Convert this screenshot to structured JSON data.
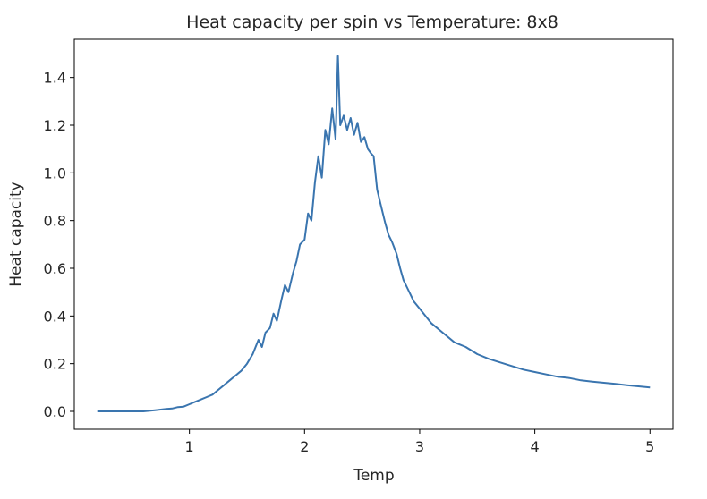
{
  "chart_data": {
    "type": "line",
    "title": "Heat capacity per spin vs Temperature: 8x8",
    "xlabel": "Temp",
    "ylabel": "Heat capacity",
    "xlim": [
      0.0,
      5.2
    ],
    "ylim": [
      -0.075,
      1.56
    ],
    "xticks": [
      1,
      2,
      3,
      4,
      5
    ],
    "yticks": [
      0.0,
      0.2,
      0.4,
      0.6,
      0.8,
      1.0,
      1.2,
      1.4
    ],
    "xtick_labels": [
      "1",
      "2",
      "3",
      "4",
      "5"
    ],
    "ytick_labels": [
      "0.0",
      "0.2",
      "0.4",
      "0.6",
      "0.8",
      "1.0",
      "1.2",
      "1.4"
    ],
    "grid": false,
    "line_color": "#3a75af",
    "series": [
      {
        "x": [
          0.2,
          0.4,
          0.6,
          0.7,
          0.8,
          0.85,
          0.9,
          0.95,
          1.0,
          1.05,
          1.1,
          1.15,
          1.2,
          1.25,
          1.3,
          1.35,
          1.4,
          1.45,
          1.5,
          1.55,
          1.6,
          1.63,
          1.66,
          1.7,
          1.73,
          1.76,
          1.8,
          1.83,
          1.86,
          1.9,
          1.93,
          1.96,
          2.0,
          2.03,
          2.06,
          2.09,
          2.12,
          2.15,
          2.18,
          2.21,
          2.24,
          2.27,
          2.29,
          2.31,
          2.34,
          2.37,
          2.4,
          2.43,
          2.46,
          2.49,
          2.52,
          2.55,
          2.58,
          2.6,
          2.63,
          2.66,
          2.7,
          2.73,
          2.76,
          2.8,
          2.83,
          2.86,
          2.9,
          2.95,
          3.0,
          3.05,
          3.1,
          3.15,
          3.2,
          3.3,
          3.4,
          3.5,
          3.6,
          3.7,
          3.8,
          3.9,
          4.0,
          4.1,
          4.2,
          4.3,
          4.4,
          4.5,
          4.6,
          4.7,
          4.8,
          4.9,
          5.0
        ],
        "y": [
          0.0,
          0.0,
          0.0,
          0.005,
          0.01,
          0.012,
          0.018,
          0.02,
          0.03,
          0.04,
          0.05,
          0.06,
          0.07,
          0.09,
          0.11,
          0.13,
          0.15,
          0.17,
          0.2,
          0.24,
          0.3,
          0.27,
          0.33,
          0.35,
          0.41,
          0.38,
          0.47,
          0.53,
          0.5,
          0.58,
          0.63,
          0.7,
          0.72,
          0.83,
          0.8,
          0.96,
          1.07,
          0.98,
          1.18,
          1.12,
          1.27,
          1.14,
          1.49,
          1.2,
          1.24,
          1.18,
          1.23,
          1.16,
          1.21,
          1.13,
          1.15,
          1.1,
          1.08,
          1.07,
          0.93,
          0.87,
          0.79,
          0.74,
          0.71,
          0.66,
          0.6,
          0.55,
          0.51,
          0.46,
          0.43,
          0.4,
          0.37,
          0.35,
          0.33,
          0.29,
          0.27,
          0.24,
          0.22,
          0.205,
          0.19,
          0.175,
          0.165,
          0.155,
          0.145,
          0.14,
          0.13,
          0.125,
          0.12,
          0.115,
          0.11,
          0.105,
          0.1
        ]
      }
    ]
  }
}
